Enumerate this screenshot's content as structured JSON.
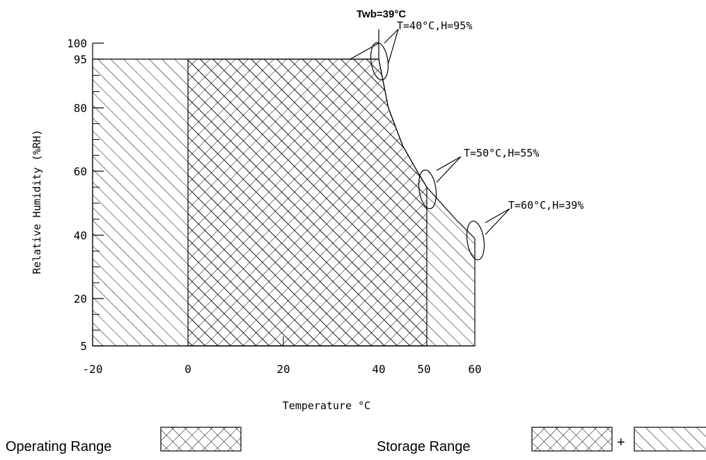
{
  "chart_data": {
    "type": "area",
    "xlabel": "Temperature °C",
    "ylabel": "Relative Humidity (%RH)",
    "xlim": [
      -20,
      60
    ],
    "ylim": [
      5,
      100
    ],
    "x_ticks": [
      -20,
      0,
      20,
      40,
      50,
      60
    ],
    "y_ticks": [
      5,
      20,
      40,
      60,
      80,
      95,
      100
    ],
    "wet_bulb_label": "Twb=39°C",
    "regions": [
      {
        "name": "Operating Range",
        "pattern": "crosshatch",
        "points": [
          [
            0,
            5
          ],
          [
            0,
            95
          ],
          [
            40,
            95
          ],
          [
            42,
            80
          ],
          [
            45,
            68
          ],
          [
            48,
            60
          ],
          [
            50,
            55
          ],
          [
            50,
            5
          ]
        ]
      },
      {
        "name": "Storage Range",
        "pattern": "crosshatch + diagonal",
        "points": [
          [
            -20,
            5
          ],
          [
            -20,
            95
          ],
          [
            40,
            95
          ],
          [
            42,
            80
          ],
          [
            45,
            68
          ],
          [
            48,
            60
          ],
          [
            50,
            55
          ],
          [
            53,
            50
          ],
          [
            56,
            45
          ],
          [
            60,
            39
          ],
          [
            60,
            5
          ]
        ]
      }
    ],
    "annotations": [
      {
        "text": "T=40°C,H=95%",
        "x": 40,
        "y": 95
      },
      {
        "text": "T=50°C,H=55%",
        "x": 50,
        "y": 55
      },
      {
        "text": "T=60°C,H=39%",
        "x": 60,
        "y": 39
      }
    ],
    "legend": [
      {
        "label": "Operating Range",
        "pattern": "crosshatch"
      },
      {
        "label": "Storage Range",
        "pattern": "crosshatch+diagonal",
        "plus": "+"
      }
    ]
  }
}
